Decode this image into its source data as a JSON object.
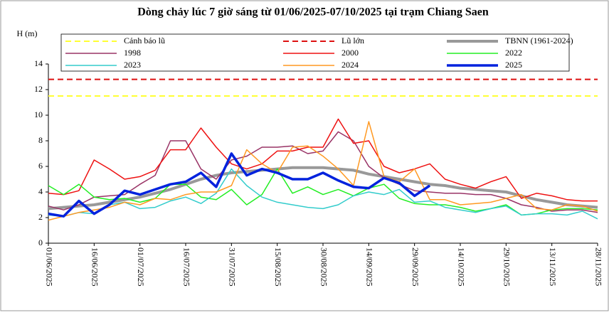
{
  "chart_data": {
    "type": "line",
    "title": "Dòng chảy lúc 7 giờ sáng từ 01/06/2025-07/10/2025 tại trạm Chiang Saen",
    "y_label": "H (m)",
    "ylim": [
      0,
      14
    ],
    "yticks": [
      0,
      2,
      4,
      6,
      8,
      10,
      12,
      14
    ],
    "xlim": [
      "01/06/2025",
      "28/11/2025"
    ],
    "xticks": [
      "01/06/2025",
      "16/06/2025",
      "01/07/2025",
      "16/07/2025",
      "31/07/2025",
      "15/08/2025",
      "30/08/2025",
      "14/09/2025",
      "29/09/2025",
      "14/10/2025",
      "29/10/2025",
      "13/11/2025",
      "28/11/2025"
    ],
    "x": [
      "01/06/2025",
      "06/06/2025",
      "11/06/2025",
      "16/06/2025",
      "21/06/2025",
      "26/06/2025",
      "01/07/2025",
      "06/07/2025",
      "11/07/2025",
      "16/07/2025",
      "21/07/2025",
      "26/07/2025",
      "31/07/2025",
      "05/08/2025",
      "10/08/2025",
      "15/08/2025",
      "20/08/2025",
      "25/08/2025",
      "30/08/2025",
      "04/09/2025",
      "09/09/2025",
      "14/09/2025",
      "19/09/2025",
      "24/09/2025",
      "29/09/2025",
      "04/10/2025",
      "09/10/2025",
      "14/10/2025",
      "19/10/2025",
      "24/10/2025",
      "29/10/2025",
      "03/11/2025",
      "08/11/2025",
      "13/11/2025",
      "18/11/2025",
      "23/11/2025",
      "28/11/2025"
    ],
    "series": [
      {
        "name": "Cảnh báo lũ",
        "color": "#ffff33",
        "dash": true,
        "width": 2,
        "value": 11.5
      },
      {
        "name": "Lũ lớn",
        "color": "#dd1111",
        "dash": true,
        "width": 2,
        "value": 12.8
      },
      {
        "name": "TBNN (1961-2024)",
        "color": "#999999",
        "dash": false,
        "width": 4,
        "values": [
          2.7,
          2.8,
          2.9,
          3.0,
          3.2,
          3.4,
          3.6,
          3.9,
          4.2,
          4.6,
          5.0,
          5.3,
          5.5,
          5.6,
          5.7,
          5.8,
          5.9,
          5.9,
          5.9,
          5.8,
          5.7,
          5.4,
          5.2,
          5.0,
          4.8,
          4.6,
          4.5,
          4.3,
          4.2,
          4.1,
          4.0,
          3.7,
          3.4,
          3.2,
          3.0,
          2.9,
          2.8
        ]
      },
      {
        "name": "1998",
        "color": "#993366",
        "dash": false,
        "width": 1.5,
        "values": [
          2.9,
          2.6,
          3.0,
          3.6,
          3.7,
          3.8,
          4.6,
          5.3,
          8.0,
          8.0,
          5.8,
          5.0,
          6.5,
          6.8,
          7.5,
          7.5,
          7.6,
          7.0,
          7.2,
          8.7,
          8.0,
          6.0,
          5.1,
          4.6,
          4.1,
          4.0,
          3.9,
          3.9,
          3.8,
          3.8,
          3.5,
          3.0,
          2.8,
          2.5,
          2.6,
          2.6,
          2.4
        ]
      },
      {
        "name": "2000",
        "color": "#ee1111",
        "dash": false,
        "width": 1.5,
        "values": [
          3.9,
          3.8,
          4.1,
          6.5,
          5.8,
          5.0,
          5.2,
          5.7,
          7.3,
          7.3,
          9.0,
          7.5,
          6.2,
          5.8,
          6.2,
          7.2,
          7.2,
          7.5,
          7.5,
          9.7,
          7.8,
          8.0,
          6.0,
          5.5,
          5.8,
          6.2,
          5.0,
          4.6,
          4.3,
          4.8,
          5.2,
          3.5,
          3.9,
          3.7,
          3.4,
          3.3,
          3.3
        ]
      },
      {
        "name": "2022",
        "color": "#22ee22",
        "dash": false,
        "width": 1.5,
        "values": [
          4.5,
          3.8,
          4.6,
          3.6,
          3.4,
          3.5,
          3.2,
          3.5,
          4.6,
          4.6,
          3.6,
          3.4,
          4.2,
          3.0,
          3.8,
          5.8,
          3.9,
          4.4,
          3.8,
          4.2,
          3.7,
          4.3,
          4.6,
          3.5,
          3.1,
          3.0,
          3.0,
          2.8,
          2.5,
          2.7,
          3.0,
          2.2,
          2.3,
          2.6,
          2.7,
          2.7,
          2.6
        ]
      },
      {
        "name": "2023",
        "color": "#33cccc",
        "dash": false,
        "width": 1.5,
        "values": [
          2.2,
          2.1,
          2.4,
          2.3,
          3.0,
          3.2,
          2.7,
          2.8,
          3.3,
          3.6,
          3.1,
          3.9,
          5.8,
          4.5,
          3.6,
          3.2,
          3.0,
          2.8,
          2.7,
          3.0,
          3.7,
          4.0,
          3.8,
          4.2,
          3.2,
          3.3,
          2.8,
          2.6,
          2.4,
          2.7,
          2.9,
          2.2,
          2.3,
          2.3,
          2.2,
          2.5,
          1.9
        ]
      },
      {
        "name": "2024",
        "color": "#ff9922",
        "dash": false,
        "width": 1.5,
        "values": [
          1.8,
          2.1,
          2.4,
          2.6,
          2.8,
          3.2,
          3.0,
          3.5,
          3.4,
          3.8,
          4.0,
          4.0,
          4.5,
          7.3,
          6.2,
          5.5,
          7.5,
          7.6,
          6.8,
          5.8,
          4.5,
          9.5,
          5.2,
          4.8,
          5.8,
          3.4,
          3.4,
          3.0,
          3.1,
          3.2,
          3.5,
          3.8,
          2.7,
          2.6,
          3.0,
          2.9,
          2.5
        ]
      },
      {
        "name": "2025",
        "color": "#0022dd",
        "dash": false,
        "width": 3.5,
        "values": [
          2.3,
          2.1,
          3.3,
          2.3,
          3.0,
          4.1,
          3.8,
          4.2,
          4.6,
          4.8,
          5.5,
          4.4,
          7.0,
          5.3,
          5.8,
          5.5,
          5.0,
          5.0,
          5.5,
          4.9,
          4.4,
          4.3,
          5.1,
          4.7,
          3.7,
          4.5,
          null,
          null,
          null,
          null,
          null,
          null,
          null,
          null,
          null,
          null,
          null
        ]
      }
    ]
  }
}
